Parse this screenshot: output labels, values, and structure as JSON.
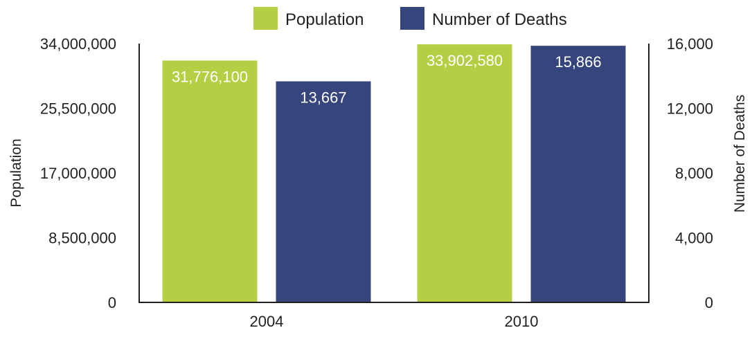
{
  "chart_data": {
    "type": "bar",
    "categories": [
      "2004",
      "2010"
    ],
    "series": [
      {
        "name": "Population",
        "axis": "left",
        "color": "#b5cf45",
        "values": [
          31776100,
          33902580
        ],
        "labels": [
          "31,776,100",
          "33,902,580"
        ]
      },
      {
        "name": "Number of Deaths",
        "axis": "right",
        "color": "#36457b",
        "values": [
          13667,
          15866
        ],
        "labels": [
          "13,667",
          "15,866"
        ]
      }
    ],
    "ylabel_left": "Population",
    "ylabel_right": "Number of Deaths",
    "ylim_left": [
      0,
      34000000
    ],
    "ylim_right": [
      0,
      16000
    ],
    "yticks_left": [
      "0",
      "8,500,000",
      "17,000,000",
      "25,500,000",
      "34,000,000"
    ],
    "yticks_right": [
      "0",
      "4,000",
      "8,000",
      "12,000",
      "16,000"
    ],
    "legend_position": "top-center",
    "grid": false
  }
}
